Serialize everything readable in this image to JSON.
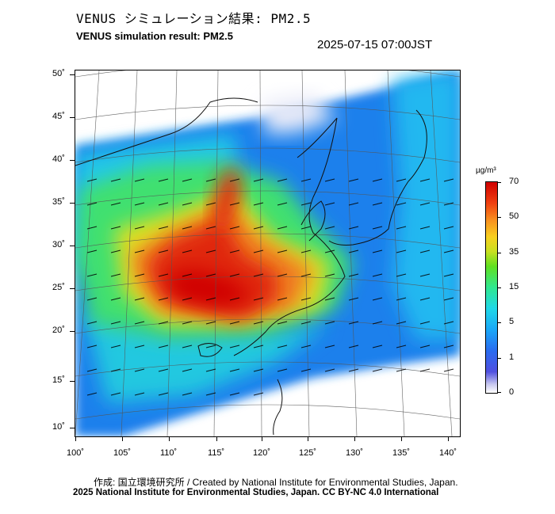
{
  "header": {
    "title_jp": "VENUS シミュレーション結果: PM2.5",
    "title_en": "VENUS simulation result: PM2.5",
    "timestamp": "2025-07-15 07:00JST"
  },
  "map": {
    "lat_labels": [
      "50˚",
      "45˚",
      "40˚",
      "35˚",
      "30˚",
      "25˚",
      "20˚",
      "15˚",
      "10˚"
    ],
    "lon_labels": [
      "100˚",
      "105˚",
      "110˚",
      "115˚",
      "120˚",
      "125˚",
      "130˚",
      "135˚",
      "140˚"
    ],
    "lat_values": [
      50,
      45,
      40,
      35,
      30,
      25,
      20,
      15,
      10
    ],
    "lon_values": [
      100,
      105,
      110,
      115,
      120,
      125,
      130,
      135,
      140
    ]
  },
  "colorbar": {
    "unit": "µg/m³",
    "tick_labels": [
      "70",
      "50",
      "35",
      "15",
      "5",
      "1",
      "0"
    ],
    "colors": {
      "low": "#ffffff",
      "blue": "#2a6cf0",
      "cyan": "#20d8e8",
      "green": "#30e890",
      "yellow": "#f8d020",
      "orange": "#f89020",
      "red": "#d00000"
    }
  },
  "footer": {
    "credit": "作成: 国立環境研究所 / Created by National Institute for Environmental Studies, Japan.",
    "copyright": "2025 National Institute for Environmental Studies, Japan. CC BY-NC 4.0 International"
  }
}
